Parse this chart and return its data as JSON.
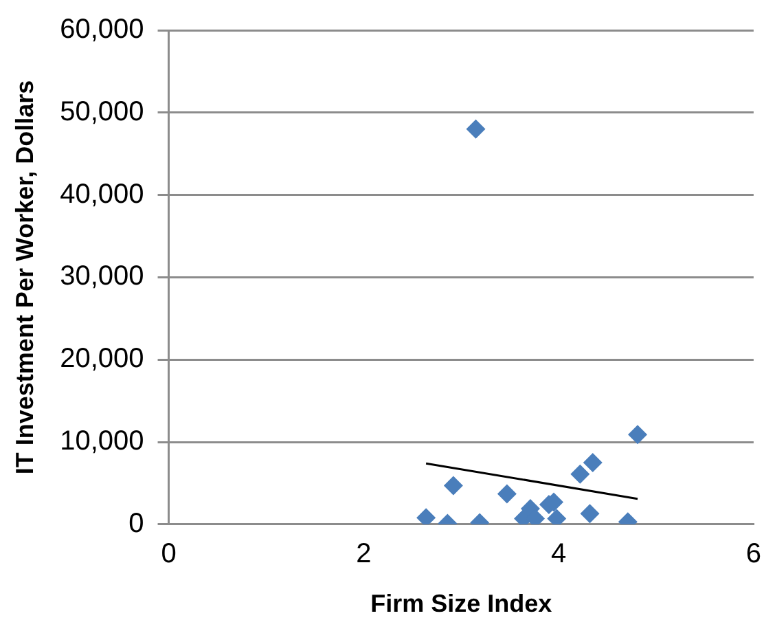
{
  "chart_data": {
    "type": "scatter",
    "xlabel": "Firm Size Index",
    "ylabel": "IT Investment Per Worker, Dollars",
    "xlim": [
      0,
      6
    ],
    "xticks": [
      0,
      2,
      4,
      6
    ],
    "ylim": [
      0,
      60000
    ],
    "yticks": [
      {
        "value": 0,
        "label": "0"
      },
      {
        "value": 10000,
        "label": "10,000"
      },
      {
        "value": 20000,
        "label": "20,000"
      },
      {
        "value": 30000,
        "label": "30,000"
      },
      {
        "value": 40000,
        "label": "40,000"
      },
      {
        "value": 50000,
        "label": "50,000"
      },
      {
        "value": 60000,
        "label": "60,000"
      }
    ],
    "grid": "y",
    "legend": false,
    "marker": "diamond",
    "series": [
      {
        "color": "#4a7ebb",
        "x": [
          2.64,
          2.86,
          2.92,
          3.15,
          3.19,
          3.47,
          3.64,
          3.71,
          3.76,
          3.9,
          3.95,
          3.98,
          4.22,
          4.32,
          4.35,
          4.71,
          4.81
        ],
        "values": [
          800,
          100,
          4700,
          48000,
          200,
          3700,
          700,
          1900,
          700,
          2400,
          2700,
          700,
          6100,
          1300,
          7500,
          300,
          10900
        ]
      },
      {
        "type": "line",
        "color": "#000000",
        "x": [
          2.64,
          4.81
        ],
        "values": [
          7400,
          3100
        ],
        "marker": "none",
        "line_style": "solid"
      }
    ]
  }
}
